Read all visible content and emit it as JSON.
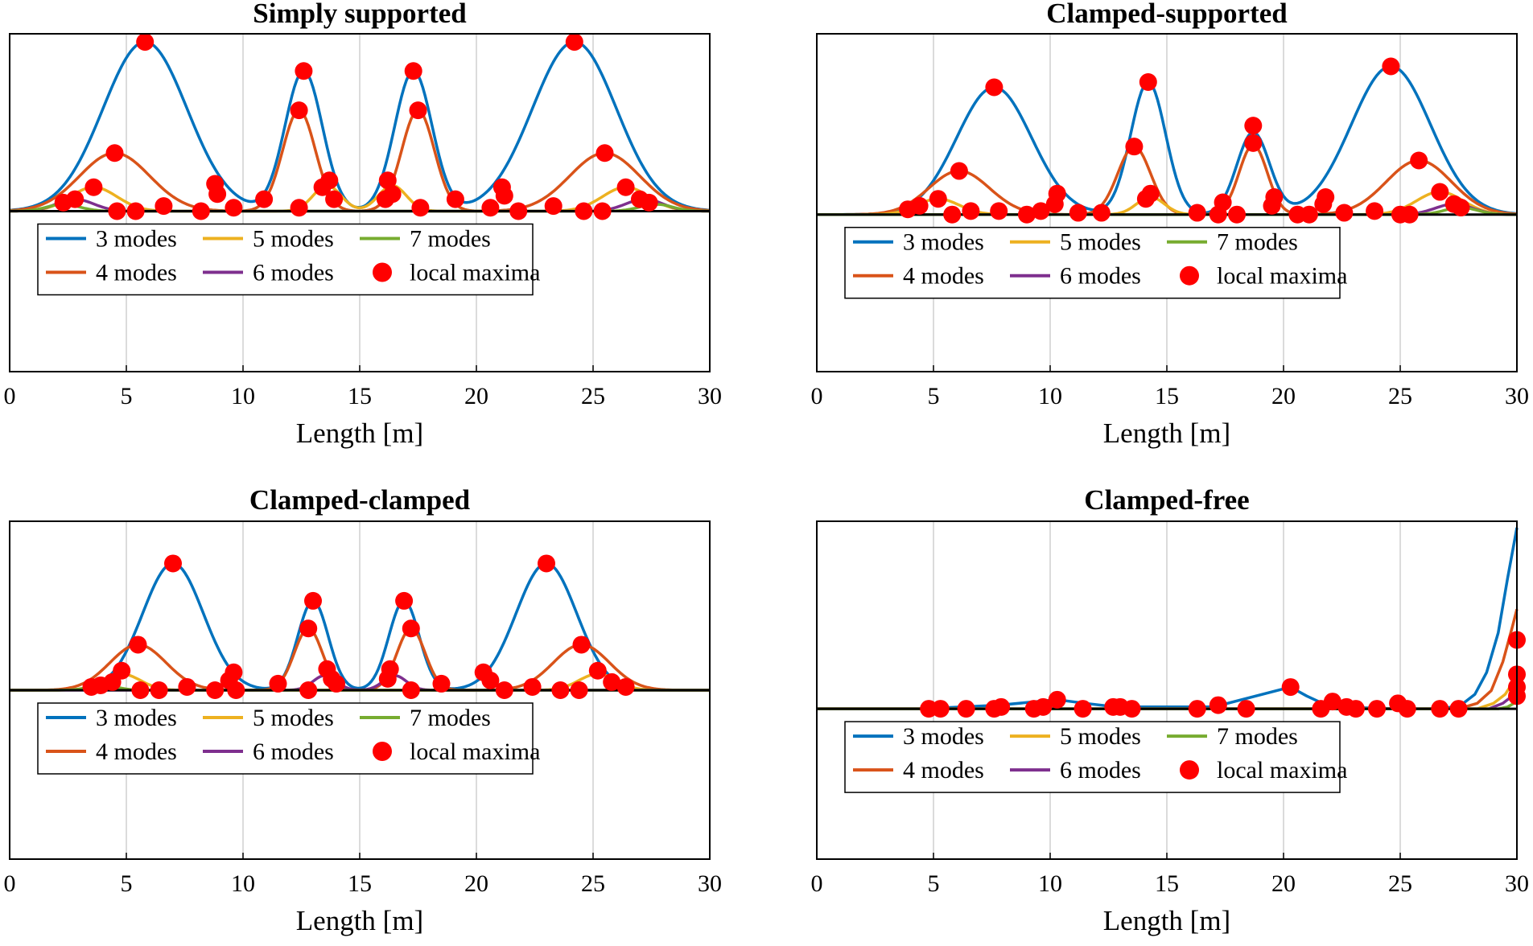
{
  "figure": {
    "legend": {
      "entries": [
        {
          "label": "3 modes",
          "color": "#0072BD",
          "marker": "line"
        },
        {
          "label": "5 modes",
          "color": "#EDB120",
          "marker": "line"
        },
        {
          "label": "7 modes",
          "color": "#77AC30",
          "marker": "line"
        },
        {
          "label": "4 modes",
          "color": "#D95319",
          "marker": "line"
        },
        {
          "label": "6 modes",
          "color": "#7E2F8E",
          "marker": "line"
        },
        {
          "label": "local maxima",
          "color": "#FF0000",
          "marker": "dot"
        }
      ],
      "placement": "lower-left inside axes"
    },
    "grid": "vertical lines only",
    "baseline_color": "#000000"
  },
  "chart_data": [
    {
      "type": "line",
      "title": "Simply supported",
      "xlabel": "Length [m]",
      "ylabel": "",
      "xlim": [
        0,
        30
      ],
      "ylim": [
        -1.0,
        1.0
      ],
      "xticks": [
        0,
        5,
        10,
        15,
        20,
        25,
        30
      ],
      "series": [
        {
          "name": "3 modes",
          "bumps": [
            {
              "center": 5.8,
              "height": 0.99,
              "width": 1.8
            },
            {
              "center": 12.6,
              "height": 0.82,
              "width": 0.8
            },
            {
              "center": 17.3,
              "height": 0.82,
              "width": 0.8
            },
            {
              "center": 24.2,
              "height": 0.99,
              "width": 1.8
            }
          ]
        },
        {
          "name": "4 modes",
          "bumps": [
            {
              "center": 4.5,
              "height": 0.34,
              "width": 1.5
            },
            {
              "center": 12.4,
              "height": 0.59,
              "width": 0.7
            },
            {
              "center": 17.5,
              "height": 0.59,
              "width": 0.7
            },
            {
              "center": 25.5,
              "height": 0.34,
              "width": 1.5
            }
          ]
        },
        {
          "name": "5 modes",
          "bumps": [
            {
              "center": 3.6,
              "height": 0.14,
              "width": 1.0
            },
            {
              "center": 13.6,
              "height": 0.15,
              "width": 0.6
            },
            {
              "center": 16.4,
              "height": 0.15,
              "width": 0.6
            },
            {
              "center": 26.4,
              "height": 0.14,
              "width": 1.0
            }
          ]
        },
        {
          "name": "6 modes",
          "bumps": [
            {
              "center": 2.8,
              "height": 0.07,
              "width": 0.8
            },
            {
              "center": 27.2,
              "height": 0.07,
              "width": 0.8
            }
          ]
        },
        {
          "name": "7 modes",
          "bumps": [
            {
              "center": 2.3,
              "height": 0.04,
              "width": 0.7
            },
            {
              "center": 27.7,
              "height": 0.04,
              "width": 0.7
            }
          ]
        }
      ],
      "local_maxima": [
        [
          5.8,
          0.99
        ],
        [
          24.2,
          0.99
        ],
        [
          12.6,
          0.82
        ],
        [
          17.3,
          0.82
        ],
        [
          12.4,
          0.59
        ],
        [
          17.5,
          0.59
        ],
        [
          4.5,
          0.34
        ],
        [
          25.5,
          0.34
        ],
        [
          3.6,
          0.14
        ],
        [
          2.3,
          0.05
        ],
        [
          2.8,
          0.07
        ],
        [
          8.8,
          0.16
        ],
        [
          8.9,
          0.1
        ],
        [
          10.9,
          0.07
        ],
        [
          13.4,
          0.14
        ],
        [
          13.7,
          0.18
        ],
        [
          13.9,
          0.07
        ],
        [
          16.2,
          0.18
        ],
        [
          16.4,
          0.1
        ],
        [
          16.1,
          0.07
        ],
        [
          19.1,
          0.07
        ],
        [
          21.1,
          0.14
        ],
        [
          21.2,
          0.09
        ],
        [
          26.4,
          0.14
        ],
        [
          27.0,
          0.07
        ],
        [
          27.4,
          0.05
        ],
        [
          4.6,
          0.0
        ],
        [
          5.4,
          0.0
        ],
        [
          6.6,
          0.03
        ],
        [
          8.2,
          0.0
        ],
        [
          9.6,
          0.02
        ],
        [
          12.4,
          0.02
        ],
        [
          17.6,
          0.02
        ],
        [
          20.6,
          0.02
        ],
        [
          21.8,
          0.0
        ],
        [
          23.3,
          0.03
        ],
        [
          24.6,
          0.0
        ],
        [
          25.4,
          0.0
        ]
      ]
    },
    {
      "type": "line",
      "title": "Clamped-supported",
      "xlabel": "Length [m]",
      "ylabel": "",
      "xlim": [
        0,
        30
      ],
      "ylim": [
        -1.0,
        1.0
      ],
      "xticks": [
        0,
        5,
        10,
        15,
        20,
        25,
        30
      ],
      "series": [
        {
          "name": "3 modes",
          "bumps": [
            {
              "center": 7.6,
              "height": 0.73,
              "width": 1.6
            },
            {
              "center": 14.2,
              "height": 0.76,
              "width": 0.75
            },
            {
              "center": 18.7,
              "height": 0.47,
              "width": 0.7
            },
            {
              "center": 24.6,
              "height": 0.85,
              "width": 1.7
            }
          ]
        },
        {
          "name": "4 modes",
          "bumps": [
            {
              "center": 6.1,
              "height": 0.25,
              "width": 1.3
            },
            {
              "center": 13.6,
              "height": 0.39,
              "width": 0.7
            },
            {
              "center": 18.7,
              "height": 0.4,
              "width": 0.6
            },
            {
              "center": 25.8,
              "height": 0.31,
              "width": 1.4
            }
          ]
        },
        {
          "name": "5 modes",
          "bumps": [
            {
              "center": 5.2,
              "height": 0.09,
              "width": 0.9
            },
            {
              "center": 14.3,
              "height": 0.1,
              "width": 0.6
            },
            {
              "center": 26.7,
              "height": 0.13,
              "width": 1.0
            }
          ]
        },
        {
          "name": "6 modes",
          "bumps": [
            {
              "center": 27.3,
              "height": 0.06,
              "width": 0.8
            }
          ]
        },
        {
          "name": "7 modes",
          "bumps": [
            {
              "center": 27.6,
              "height": 0.04,
              "width": 0.7
            }
          ]
        }
      ],
      "local_maxima": [
        [
          7.6,
          0.73
        ],
        [
          14.2,
          0.76
        ],
        [
          24.6,
          0.85
        ],
        [
          18.7,
          0.51
        ],
        [
          18.7,
          0.41
        ],
        [
          13.6,
          0.39
        ],
        [
          25.8,
          0.31
        ],
        [
          6.1,
          0.25
        ],
        [
          5.2,
          0.09
        ],
        [
          4.4,
          0.05
        ],
        [
          3.9,
          0.03
        ],
        [
          10.3,
          0.12
        ],
        [
          10.2,
          0.06
        ],
        [
          14.3,
          0.12
        ],
        [
          14.1,
          0.09
        ],
        [
          17.4,
          0.07
        ],
        [
          19.6,
          0.1
        ],
        [
          19.5,
          0.05
        ],
        [
          21.8,
          0.1
        ],
        [
          21.7,
          0.06
        ],
        [
          26.7,
          0.13
        ],
        [
          27.3,
          0.06
        ],
        [
          27.6,
          0.04
        ],
        [
          5.8,
          0.0
        ],
        [
          6.6,
          0.02
        ],
        [
          7.8,
          0.02
        ],
        [
          9.0,
          0.0
        ],
        [
          9.6,
          0.02
        ],
        [
          11.2,
          0.01
        ],
        [
          12.2,
          0.01
        ],
        [
          16.3,
          0.01
        ],
        [
          17.2,
          0.0
        ],
        [
          18.0,
          0.0
        ],
        [
          20.6,
          0.0
        ],
        [
          21.1,
          0.0
        ],
        [
          22.6,
          0.01
        ],
        [
          23.9,
          0.02
        ],
        [
          25.0,
          0.0
        ],
        [
          25.4,
          0.0
        ]
      ]
    },
    {
      "type": "line",
      "title": "Clamped-clamped",
      "xlabel": "Length [m]",
      "ylabel": "",
      "xlim": [
        0,
        30
      ],
      "ylim": [
        -1.0,
        1.0
      ],
      "xticks": [
        0,
        5,
        10,
        15,
        20,
        25,
        30
      ],
      "series": [
        {
          "name": "3 modes",
          "bumps": [
            {
              "center": 7.0,
              "height": 0.78,
              "width": 1.3
            },
            {
              "center": 13.0,
              "height": 0.55,
              "width": 0.65
            },
            {
              "center": 16.9,
              "height": 0.55,
              "width": 0.65
            },
            {
              "center": 23.0,
              "height": 0.78,
              "width": 1.3
            }
          ]
        },
        {
          "name": "4 modes",
          "bumps": [
            {
              "center": 5.5,
              "height": 0.28,
              "width": 1.2
            },
            {
              "center": 12.8,
              "height": 0.38,
              "width": 0.6
            },
            {
              "center": 17.2,
              "height": 0.38,
              "width": 0.6
            },
            {
              "center": 24.5,
              "height": 0.28,
              "width": 1.2
            }
          ]
        },
        {
          "name": "5 modes",
          "bumps": [
            {
              "center": 4.8,
              "height": 0.1,
              "width": 0.8
            },
            {
              "center": 25.2,
              "height": 0.1,
              "width": 0.8
            }
          ]
        },
        {
          "name": "6 modes",
          "bumps": [
            {
              "center": 13.5,
              "height": 0.09,
              "width": 0.5
            },
            {
              "center": 16.5,
              "height": 0.09,
              "width": 0.5
            }
          ]
        },
        {
          "name": "7 modes",
          "bumps": [
            {
              "center": 4.0,
              "height": 0.03,
              "width": 0.6
            }
          ]
        }
      ],
      "local_maxima": [
        [
          7.0,
          0.78
        ],
        [
          23.0,
          0.78
        ],
        [
          13.0,
          0.55
        ],
        [
          16.9,
          0.55
        ],
        [
          12.8,
          0.38
        ],
        [
          17.2,
          0.38
        ],
        [
          5.5,
          0.28
        ],
        [
          24.5,
          0.28
        ],
        [
          4.8,
          0.12
        ],
        [
          4.4,
          0.05
        ],
        [
          3.9,
          0.03
        ],
        [
          3.5,
          0.02
        ],
        [
          9.6,
          0.11
        ],
        [
          9.4,
          0.06
        ],
        [
          11.5,
          0.04
        ],
        [
          13.6,
          0.13
        ],
        [
          13.8,
          0.07
        ],
        [
          14.0,
          0.04
        ],
        [
          16.3,
          0.13
        ],
        [
          16.2,
          0.07
        ],
        [
          18.5,
          0.04
        ],
        [
          20.3,
          0.11
        ],
        [
          20.6,
          0.06
        ],
        [
          25.2,
          0.12
        ],
        [
          25.8,
          0.05
        ],
        [
          26.4,
          0.02
        ],
        [
          5.6,
          0.0
        ],
        [
          6.4,
          0.0
        ],
        [
          7.6,
          0.02
        ],
        [
          8.8,
          0.0
        ],
        [
          9.7,
          0.0
        ],
        [
          12.8,
          0.0
        ],
        [
          17.2,
          0.0
        ],
        [
          21.2,
          0.0
        ],
        [
          22.4,
          0.02
        ],
        [
          23.6,
          0.0
        ],
        [
          24.4,
          0.0
        ]
      ]
    },
    {
      "type": "line",
      "title": "Clamped-free",
      "xlabel": "Length [m]",
      "ylabel": "",
      "xlim": [
        0,
        30
      ],
      "ylim": [
        -1.0,
        1.0
      ],
      "xticks": [
        0,
        5,
        10,
        15,
        20,
        25,
        30
      ],
      "series": [
        {
          "name": "3 modes",
          "points": [
            [
              0,
              0
            ],
            [
              4.5,
              0.0
            ],
            [
              7.8,
              0.02
            ],
            [
              10.3,
              0.05
            ],
            [
              11.5,
              0.03
            ],
            [
              12.8,
              0.01
            ],
            [
              17.0,
              0.01
            ],
            [
              20.3,
              0.12
            ],
            [
              21.0,
              0.07
            ],
            [
              22.0,
              0.01
            ],
            [
              25.0,
              0.0
            ],
            [
              26.8,
              0.0
            ],
            [
              27.6,
              0.02
            ],
            [
              28.2,
              0.08
            ],
            [
              28.7,
              0.2
            ],
            [
              29.2,
              0.42
            ],
            [
              29.6,
              0.72
            ],
            [
              30.0,
              1.0
            ]
          ]
        },
        {
          "name": "4 modes",
          "points": [
            [
              0,
              0
            ],
            [
              27.5,
              0.0
            ],
            [
              28.3,
              0.03
            ],
            [
              28.9,
              0.1
            ],
            [
              29.4,
              0.26
            ],
            [
              29.8,
              0.45
            ],
            [
              30.0,
              0.55
            ]
          ]
        },
        {
          "name": "5 modes",
          "points": [
            [
              0,
              0
            ],
            [
              28.3,
              0.0
            ],
            [
              29.0,
              0.03
            ],
            [
              29.5,
              0.08
            ],
            [
              30.0,
              0.18
            ]
          ]
        },
        {
          "name": "6 modes",
          "points": [
            [
              0,
              0
            ],
            [
              28.8,
              0.0
            ],
            [
              29.4,
              0.03
            ],
            [
              30.0,
              0.09
            ]
          ]
        },
        {
          "name": "7 modes",
          "points": [
            [
              0,
              0
            ],
            [
              29.2,
              0.0
            ],
            [
              29.6,
              0.01
            ],
            [
              30.0,
              0.04
            ]
          ]
        }
      ],
      "local_maxima": [
        [
          4.8,
          0.0
        ],
        [
          5.3,
          0.0
        ],
        [
          6.4,
          0.0
        ],
        [
          7.6,
          0.0
        ],
        [
          7.9,
          0.01
        ],
        [
          9.3,
          0.0
        ],
        [
          9.7,
          0.01
        ],
        [
          10.3,
          0.05
        ],
        [
          11.4,
          0.0
        ],
        [
          12.7,
          0.01
        ],
        [
          13.0,
          0.01
        ],
        [
          13.5,
          0.0
        ],
        [
          16.3,
          0.0
        ],
        [
          17.2,
          0.02
        ],
        [
          18.4,
          0.0
        ],
        [
          20.3,
          0.12
        ],
        [
          21.6,
          0.0
        ],
        [
          22.1,
          0.04
        ],
        [
          22.7,
          0.01
        ],
        [
          23.1,
          0.0
        ],
        [
          24.0,
          0.0
        ],
        [
          24.9,
          0.03
        ],
        [
          25.3,
          0.0
        ],
        [
          26.7,
          0.0
        ],
        [
          27.5,
          0.0
        ],
        [
          30.0,
          0.38
        ],
        [
          30.0,
          0.19
        ],
        [
          30.0,
          0.12
        ],
        [
          30.0,
          0.07
        ]
      ]
    }
  ]
}
